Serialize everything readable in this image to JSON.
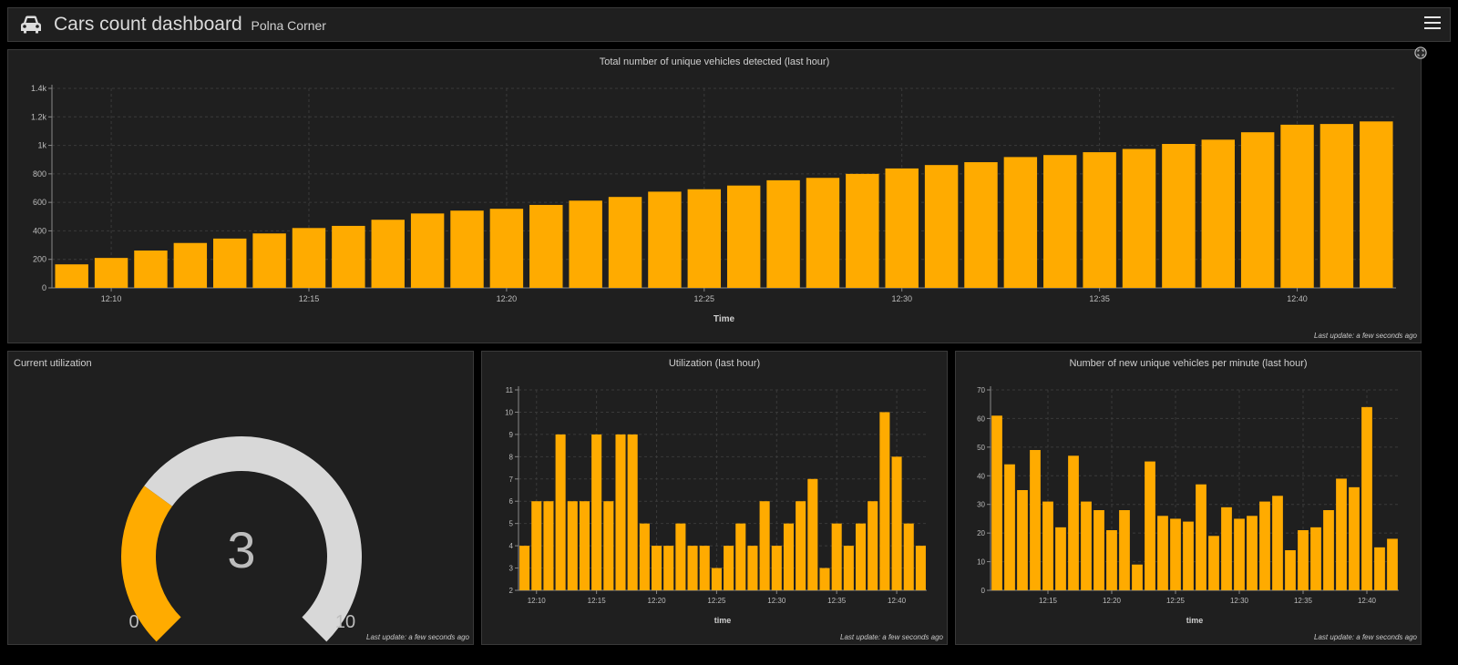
{
  "header": {
    "title": "Cars count dashboard",
    "subtitle": "Polna Corner",
    "icon": "car-icon",
    "menu_icon": "menu-icon"
  },
  "colors": {
    "bar": "#FFAB00",
    "panel_bg": "#1f1f1f",
    "grid": "#3a3a3a",
    "gauge_track": "#d8d8d8",
    "gauge_fill": "#FFAB00"
  },
  "panels": {
    "total": {
      "title": "Total number of unique vehicles detected (last hour)",
      "last_update": "Last update: a few seconds ago"
    },
    "gauge": {
      "title": "Current utilization",
      "last_update": "Last update: a few seconds ago"
    },
    "utilization": {
      "title": "Utilization (last hour)",
      "last_update": "Last update: a few seconds ago"
    },
    "newvehicles": {
      "title": "Number of new unique vehicles per minute (last hour)",
      "last_update": "Last update: a few seconds ago"
    }
  },
  "gauge": {
    "value": 3,
    "min": 0,
    "max": 10,
    "value_label": "3",
    "min_label": "0",
    "max_label": "10"
  },
  "chart_data": [
    {
      "id": "total",
      "type": "bar",
      "title": "Total number of unique vehicles detected (last hour)",
      "xlabel": "Time",
      "ylabel": "",
      "ylim": [
        0,
        1400
      ],
      "yticks": [
        0,
        200,
        400,
        600,
        800,
        1000,
        1200,
        1400
      ],
      "ytick_labels": [
        "0",
        "200",
        "400",
        "600",
        "800",
        "1k",
        "1.2k",
        "1.4k"
      ],
      "x_start_minute": 9,
      "xticks": [
        "12:10",
        "12:15",
        "12:20",
        "12:25",
        "12:30",
        "12:35",
        "12:40"
      ],
      "values": [
        165,
        210,
        262,
        315,
        346,
        382,
        420,
        435,
        478,
        522,
        542,
        555,
        582,
        612,
        638,
        675,
        692,
        718,
        755,
        772,
        800,
        838,
        862,
        882,
        918,
        932,
        952,
        975,
        1010,
        1040,
        1092,
        1145,
        1150,
        1168
      ],
      "grid": true
    },
    {
      "id": "utilization",
      "type": "bar",
      "title": "Utilization (last hour)",
      "xlabel": "time",
      "ylabel": "",
      "ylim": [
        2,
        11
      ],
      "yticks": [
        2,
        3,
        4,
        5,
        6,
        7,
        8,
        9,
        10,
        11
      ],
      "ytick_labels": [
        "2",
        "3",
        "4",
        "5",
        "6",
        "7",
        "8",
        "9",
        "10",
        "11"
      ],
      "x_start_minute": 9,
      "xticks": [
        "12:10",
        "12:15",
        "12:20",
        "12:25",
        "12:30",
        "12:35",
        "12:40"
      ],
      "values": [
        4,
        6,
        6,
        9,
        6,
        6,
        9,
        6,
        9,
        9,
        5,
        4,
        4,
        5,
        4,
        4,
        3,
        4,
        5,
        4,
        6,
        4,
        5,
        6,
        7,
        3,
        5,
        4,
        5,
        6,
        10,
        8,
        5,
        4
      ],
      "grid": true
    },
    {
      "id": "newvehicles",
      "type": "bar",
      "title": "Number of new unique vehicles per minute (last hour)",
      "xlabel": "time",
      "ylabel": "",
      "ylim": [
        0,
        70
      ],
      "yticks": [
        0,
        10,
        20,
        30,
        40,
        50,
        60,
        70
      ],
      "ytick_labels": [
        "0",
        "10",
        "20",
        "30",
        "40",
        "50",
        "60",
        "70"
      ],
      "x_start_minute": 11,
      "xticks": [
        "12:15",
        "12:20",
        "12:25",
        "12:30",
        "12:35",
        "12:40"
      ],
      "values": [
        61,
        44,
        35,
        49,
        31,
        22,
        47,
        31,
        28,
        21,
        28,
        9,
        45,
        26,
        25,
        24,
        37,
        19,
        29,
        25,
        26,
        31,
        33,
        14,
        21,
        22,
        28,
        39,
        36,
        64,
        15,
        18
      ],
      "grid": true
    }
  ]
}
